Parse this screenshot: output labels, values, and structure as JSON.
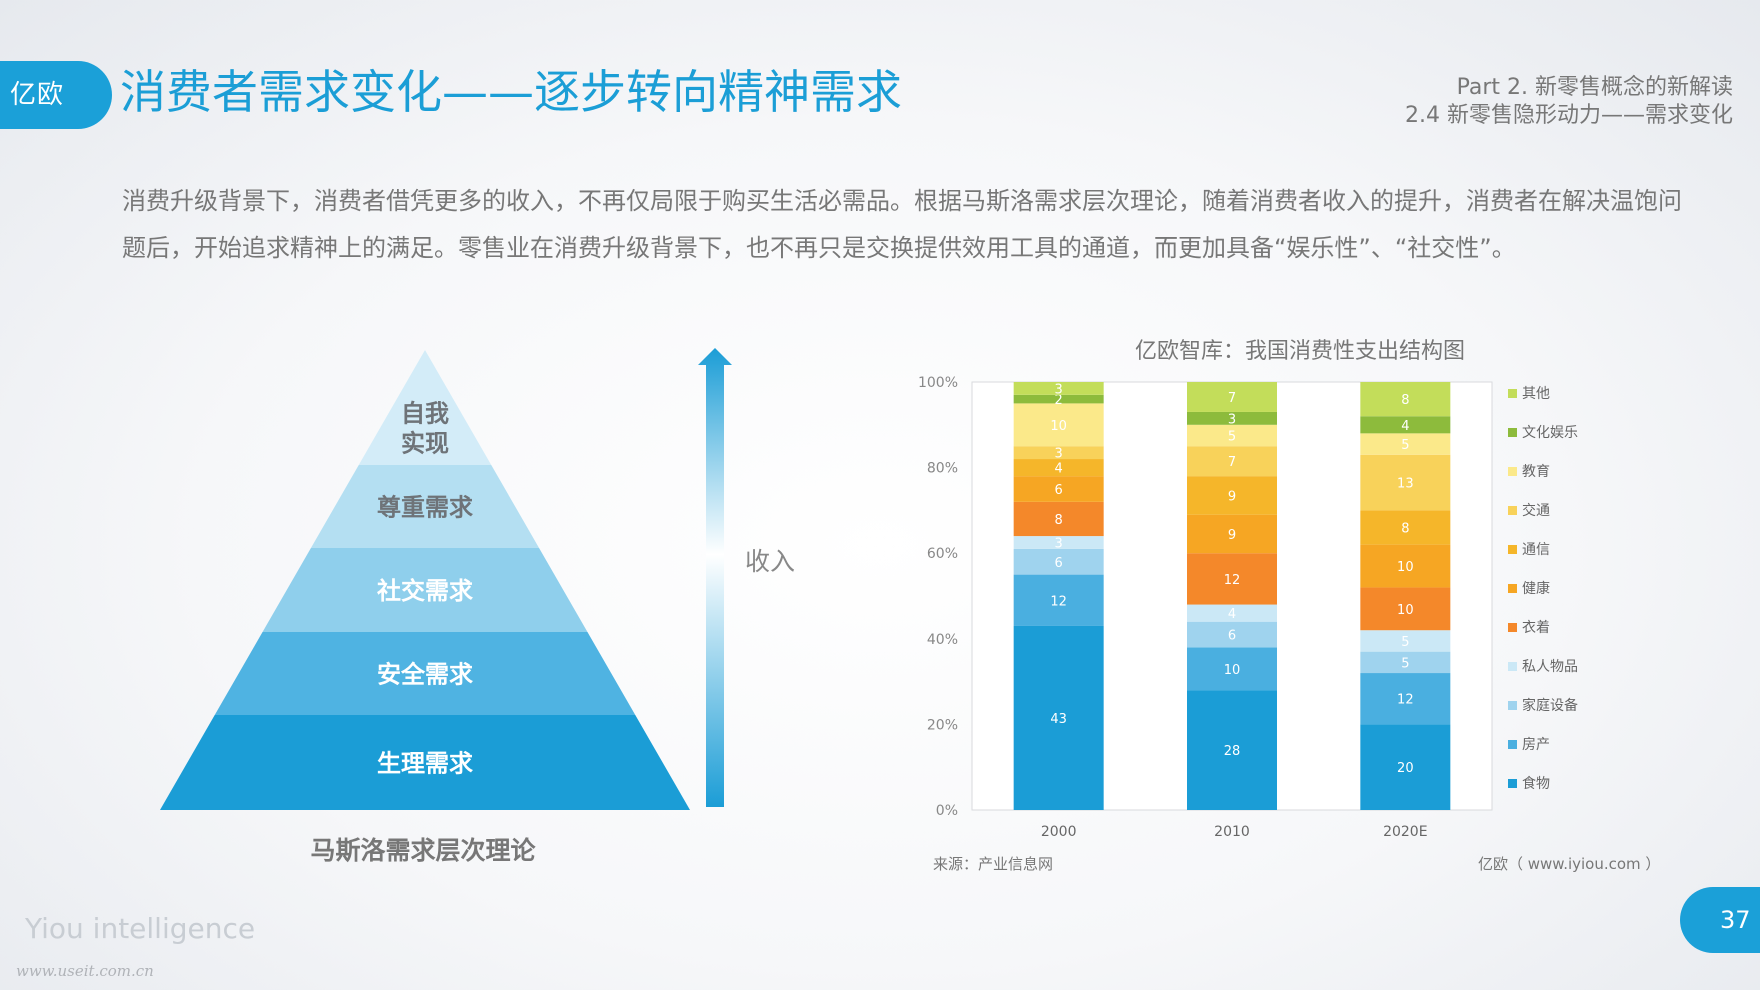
{
  "header": {
    "logo_text": "亿欧",
    "title": "消费者需求变化——逐步转向精神需求",
    "part_line1": "Part 2. 新零售概念的新解读",
    "part_line2": "2.4 新零售隐形动力——需求变化"
  },
  "intro": "消费升级背景下，消费者借凭更多的收入，不再仅局限于购买生活必需品。根据马斯洛需求层次理论，随着消费者收入的提升，消费者在解决温饱问题后，开始追求精神上的满足。零售业在消费升级背景下，也不再只是交换提供效用工具的通道，而更加具备“娱乐性”、“社交性”。",
  "pyramid": {
    "levels": [
      "自我\n实现",
      "尊重需求",
      "社交需求",
      "安全需求",
      "生理需求"
    ],
    "colors": [
      "#d3ecf8",
      "#b4dff2",
      "#8fcfec",
      "#4fb3e2",
      "#1b9dd6"
    ],
    "caption": "马斯洛需求层次理论",
    "arrow_label": "收入"
  },
  "chart_data": {
    "type": "bar",
    "stacked": true,
    "title": "亿欧智库：我国消费性支出结构图",
    "categories": [
      "2000",
      "2010",
      "2020E"
    ],
    "yticks": [
      "0%",
      "20%",
      "40%",
      "60%",
      "80%",
      "100%"
    ],
    "ylim": [
      0,
      100
    ],
    "series": [
      {
        "name": "食物",
        "color": "#1b9dd6",
        "values": [
          43,
          28,
          20
        ]
      },
      {
        "name": "房产",
        "color": "#4aafe0",
        "values": [
          12,
          10,
          12
        ]
      },
      {
        "name": "家庭设备",
        "color": "#9fd3ee",
        "values": [
          6,
          6,
          5
        ]
      },
      {
        "name": "私人物品",
        "color": "#cbe8f6",
        "values": [
          3,
          4,
          5
        ]
      },
      {
        "name": "衣着",
        "color": "#f4882a",
        "values": [
          8,
          12,
          10
        ]
      },
      {
        "name": "健康",
        "color": "#f6a623",
        "values": [
          6,
          9,
          10
        ]
      },
      {
        "name": "通信",
        "color": "#f5b62a",
        "values": [
          4,
          9,
          8
        ]
      },
      {
        "name": "交通",
        "color": "#f8d25a",
        "values": [
          3,
          7,
          13
        ]
      },
      {
        "name": "教育",
        "color": "#fbe98a",
        "values": [
          10,
          5,
          5
        ]
      },
      {
        "name": "文化娱乐",
        "color": "#8dbb3c",
        "values": [
          2,
          3,
          4
        ]
      },
      {
        "name": "其他",
        "color": "#c3dd5a",
        "values": [
          3,
          7,
          8
        ]
      }
    ],
    "legend_position": "right"
  },
  "footer": {
    "source": "来源：产业信息网",
    "credit": "亿欧（ www.iyiou.com ）",
    "brand": "Yiou intelligence",
    "watermark": "www.useit.com.cn",
    "page_number": "37"
  }
}
